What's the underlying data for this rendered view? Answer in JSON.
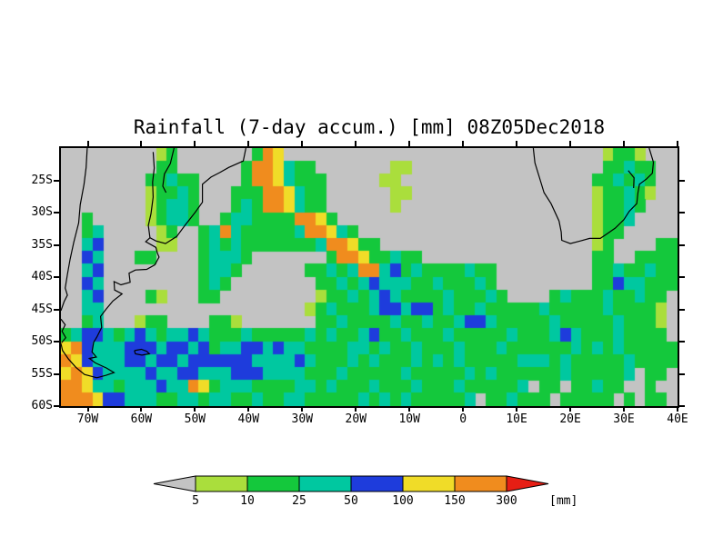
{
  "title": "Rainfall (7-day accum.) [mm] 08Z05Dec2018",
  "chart_data": {
    "type": "heatmap",
    "variable": "Rainfall (7-day accum.)",
    "timestamp_label": "08Z05Dec2018",
    "unit": "mm",
    "lon_range": [
      -75,
      40
    ],
    "lat_range": [
      -60,
      -20
    ],
    "x_ticks": [
      {
        "lon": -70,
        "label": "70W"
      },
      {
        "lon": -60,
        "label": "60W"
      },
      {
        "lon": -50,
        "label": "50W"
      },
      {
        "lon": -40,
        "label": "40W"
      },
      {
        "lon": -30,
        "label": "30W"
      },
      {
        "lon": -20,
        "label": "20W"
      },
      {
        "lon": -10,
        "label": "10W"
      },
      {
        "lon": 0,
        "label": "0"
      },
      {
        "lon": 10,
        "label": "10E"
      },
      {
        "lon": 20,
        "label": "20E"
      },
      {
        "lon": 30,
        "label": "30E"
      },
      {
        "lon": 40,
        "label": "40E"
      }
    ],
    "y_ticks": [
      {
        "lat": -25,
        "label": "25S"
      },
      {
        "lat": -30,
        "label": "30S"
      },
      {
        "lat": -35,
        "label": "35S"
      },
      {
        "lat": -40,
        "label": "40S"
      },
      {
        "lat": -45,
        "label": "45S"
      },
      {
        "lat": -50,
        "label": "50S"
      },
      {
        "lat": -55,
        "label": "55S"
      },
      {
        "lat": -60,
        "label": "60S"
      }
    ],
    "levels_mm": [
      5,
      10,
      25,
      50,
      100,
      150,
      300
    ],
    "background_color": "#c3c3c3",
    "palette": {
      ".": "#c3c3c3",
      "1": "#aade3c",
      "2": "#14c83c",
      "3": "#00c8a0",
      "4": "#1e3cdc",
      "5": "#f0dc28",
      "6": "#f08c1e",
      "7": "#e61e14"
    },
    "grid": {
      "ncols": 58,
      "nrows": 20,
      "legend": "each char = ~2deg x 2deg cell; . <5mm, 1:5-10, 2:10-25, 3:25-50, 4:50-100, 5:100-150, 6:150-300, 7:>300",
      "rows": [
        [
          ".........",
          "12",
          ".......",
          "265",
          "..............................",
          "1221",
          "..."
        ],
        [
          ".........",
          "22",
          "......",
          "26653",
          "22",
          ".......",
          "11",
          "..................",
          "22322",
          ".."
        ],
        [
          "........",
          "22322",
          "....",
          "26653222",
          ".....",
          "11",
          "..................",
          "223232",
          ".."
        ],
        [
          "........",
          "12232",
          "...",
          "222665322",
          "......",
          "11",
          ".................",
          "122321",
          ".."
        ],
        [
          "........",
          "12332",
          "...",
          "232665322",
          "......",
          "1",
          "..................",
          "12232",
          "..."
        ],
        [
          "..",
          "2",
          ".....",
          "12332",
          "..",
          "2332222",
          "665",
          "2",
          "........................",
          "1223",
          "...."
        ],
        [
          "..",
          "23",
          ".....",
          "12",
          "..",
          "23632",
          "2222",
          "3665",
          "32",
          "......................",
          "122",
          "....."
        ],
        [
          "..",
          "34",
          ".....",
          "11",
          "..",
          "23232",
          "222222",
          "3665",
          "22",
          "....................",
          "12",
          "....",
          "22"
        ],
        [
          "..",
          "43",
          "...",
          "22",
          "....",
          "23332",
          ".......",
          "2665",
          "22322",
          "................",
          "22",
          "..",
          "2222"
        ],
        [
          "..",
          "34",
          ".........",
          "2332",
          "......",
          "2232",
          "3663",
          "423222",
          "2322",
          ".........",
          "22322322"
        ],
        [
          "..",
          "43",
          ".........",
          "232",
          "........",
          "223",
          "23433",
          "32232",
          "2232",
          ".........",
          "22433222"
        ],
        [
          "..",
          "34",
          "....",
          "21",
          "...",
          "22",
          ".........",
          "12232",
          "34322",
          "22322",
          "232",
          "....",
          "2322",
          "2322322."
        ],
        [
          "..",
          "33",
          "...................",
          "12322",
          "23443",
          "44232",
          "23222",
          "22322",
          "22232",
          "2221."
        ],
        [
          "..",
          "23",
          "...",
          "122",
          "....",
          "221",
          ".......",
          "22322",
          "22322",
          "32234",
          "43222",
          "22322",
          "22232",
          "221."
        ],
        [
          "23443",
          "23432",
          "33432",
          "22322",
          "22232",
          "32234",
          "22322",
          "23222",
          "22322",
          "23432",
          "22322",
          "22."
        ],
        [
          "56433",
          "34443",
          "44342",
          "33443",
          "43322",
          "22332",
          "32232",
          "22322",
          "23222",
          "22232",
          "32322",
          "222"
        ],
        [
          "65433",
          "34434",
          "43444",
          "44433",
          "33432",
          "22323",
          "22232",
          "32322",
          "22233",
          "32322",
          "22232",
          "222"
        ],
        [
          "56543",
          "33343",
          "34433",
          "34443",
          "33322",
          "23222",
          "22322",
          "22232",
          "32222",
          "22322",
          "2223.",
          "22."
        ],
        [
          "66533",
          "23334",
          "33652",
          "33322",
          "22332",
          "32223",
          "22232",
          "22322",
          "2223.",
          "22.22",
          "322..",
          "2.."
        ],
        [
          "66654",
          "43332",
          "23323",
          "32232",
          "23322",
          "22232",
          "32322",
          "2223.",
          "22322",
          "2.222",
          "22.2.",
          "22."
        ]
      ]
    },
    "coastlines": [
      [
        [
          -40.5,
          -20
        ],
        [
          -41,
          -22
        ],
        [
          -43.7,
          -23
        ],
        [
          -45.4,
          -23.8
        ],
        [
          -47,
          -24.5
        ],
        [
          -48.6,
          -25.6
        ],
        [
          -48.6,
          -28.4
        ],
        [
          -50,
          -30
        ],
        [
          -51.8,
          -31.9
        ],
        [
          -53.4,
          -33.7
        ],
        [
          -55.5,
          -34.8
        ],
        [
          -57.3,
          -34.4
        ],
        [
          -58.4,
          -33.9
        ],
        [
          -59.2,
          -34.5
        ],
        [
          -57.3,
          -35.4
        ],
        [
          -57,
          -36.3
        ],
        [
          -56.7,
          -36.9
        ],
        [
          -57.5,
          -38.1
        ],
        [
          -59,
          -38.8
        ],
        [
          -61.1,
          -38.9
        ],
        [
          -62.3,
          -39.4
        ],
        [
          -62.1,
          -40.8
        ],
        [
          -63.8,
          -41.2
        ],
        [
          -65.1,
          -40.7
        ],
        [
          -65,
          -42
        ],
        [
          -63.6,
          -42.6
        ],
        [
          -65.3,
          -43.7
        ],
        [
          -66.6,
          -45
        ],
        [
          -67.6,
          -46.1
        ],
        [
          -67.4,
          -47.8
        ],
        [
          -68.3,
          -49.3
        ],
        [
          -68.9,
          -50.1
        ],
        [
          -69.2,
          -51.6
        ],
        [
          -68.4,
          -52.4
        ],
        [
          -69.7,
          -52.6
        ],
        [
          -68.6,
          -53.3
        ],
        [
          -66.5,
          -54.1
        ],
        [
          -65.1,
          -54.8
        ],
        [
          -66.5,
          -55.2
        ],
        [
          -68.3,
          -55.6
        ],
        [
          -70.6,
          -55.1
        ],
        [
          -72.2,
          -54
        ],
        [
          -73.6,
          -52.7
        ],
        [
          -74.7,
          -51.4
        ],
        [
          -75,
          -50.3
        ]
      ],
      [
        [
          -70.1,
          -20
        ],
        [
          -70.3,
          -23
        ],
        [
          -70.7,
          -25.6
        ],
        [
          -71.4,
          -28.8
        ],
        [
          -71.7,
          -31.6
        ],
        [
          -72.6,
          -34.6
        ],
        [
          -73.3,
          -37.3
        ],
        [
          -73.8,
          -39.6
        ],
        [
          -74.2,
          -41.7
        ],
        [
          -73.8,
          -42.8
        ],
        [
          -74.4,
          -43.8
        ],
        [
          -75,
          -45.2
        ]
      ],
      [
        [
          -75,
          -46.5
        ],
        [
          -74.2,
          -47.4
        ],
        [
          -74.8,
          -48.4
        ],
        [
          -74.1,
          -49.4
        ],
        [
          -74.9,
          -50.2
        ]
      ],
      [
        [
          -61.3,
          -51.4
        ],
        [
          -60,
          -51.2
        ],
        [
          -59,
          -51.5
        ],
        [
          -58.5,
          -51.9
        ],
        [
          -59.9,
          -52.1
        ],
        [
          -61.1,
          -51.9
        ],
        [
          -61.3,
          -51.4
        ]
      ],
      [
        [
          -58.4,
          -33.9
        ],
        [
          -58.7,
          -32
        ],
        [
          -58.2,
          -30.2
        ],
        [
          -57.8,
          -27.6
        ],
        [
          -57.9,
          -25.3
        ],
        [
          -57.6,
          -23.1
        ],
        [
          -57.8,
          -20.6
        ]
      ],
      [
        [
          -53.9,
          -20
        ],
        [
          -54.6,
          -22.4
        ],
        [
          -55.7,
          -24
        ],
        [
          -56,
          -25.9
        ],
        [
          -55.4,
          -26.9
        ]
      ],
      [
        [
          13.1,
          -20
        ],
        [
          13.4,
          -22.3
        ],
        [
          14.4,
          -25
        ],
        [
          15.1,
          -26.9
        ],
        [
          16.4,
          -28.6
        ],
        [
          17.9,
          -31.3
        ],
        [
          18.3,
          -33
        ],
        [
          18.4,
          -34.3
        ],
        [
          20,
          -34.8
        ],
        [
          21.9,
          -34.4
        ],
        [
          23.6,
          -34
        ],
        [
          25.6,
          -34
        ],
        [
          27,
          -33.2
        ],
        [
          28.4,
          -32.4
        ],
        [
          30,
          -31.1
        ],
        [
          31,
          -29.8
        ],
        [
          32.4,
          -28.6
        ],
        [
          32.6,
          -27
        ],
        [
          32.9,
          -25.6
        ],
        [
          34.2,
          -24.8
        ],
        [
          35.3,
          -23.9
        ],
        [
          35.5,
          -22.2
        ],
        [
          34.7,
          -20
        ]
      ],
      [
        [
          30.8,
          -23.5
        ],
        [
          31.9,
          -24.6
        ],
        [
          31.8,
          -26.2
        ]
      ]
    ],
    "colorbar": {
      "labels": [
        "5",
        "10",
        "25",
        "50",
        "100",
        "150",
        "300"
      ],
      "below_color": "#c3c3c3",
      "segment_colors": [
        "#aade3c",
        "#14c83c",
        "#00c8a0",
        "#1e3cdc",
        "#f0dc28",
        "#f08c1e"
      ],
      "above_color": "#e61e14",
      "unit_label": "[mm]"
    }
  }
}
